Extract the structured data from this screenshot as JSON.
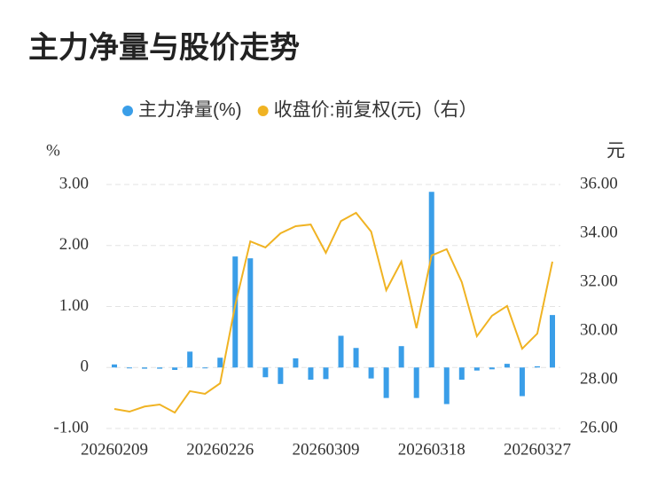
{
  "chart_data": {
    "type": "bar_line",
    "title": "主力净量与股价走势",
    "y_label": "%",
    "y2_label": "元",
    "categories": [
      "20260209",
      null,
      null,
      null,
      null,
      null,
      null,
      "20260226",
      null,
      null,
      null,
      null,
      null,
      null,
      "20260309",
      null,
      null,
      null,
      null,
      null,
      null,
      "20260318",
      null,
      null,
      null,
      null,
      null,
      null,
      "20260327",
      null
    ],
    "series": [
      {
        "name": "主力净量(%)",
        "type": "bar",
        "color": "#3a9ee8",
        "values": [
          0.05,
          -0.01,
          -0.02,
          -0.02,
          -0.04,
          0.26,
          -0.01,
          0.16,
          1.82,
          1.79,
          -0.16,
          -0.27,
          0.15,
          -0.2,
          -0.19,
          0.52,
          0.32,
          -0.18,
          -0.5,
          0.35,
          -0.5,
          2.88,
          -0.6,
          -0.2,
          -0.05,
          -0.03,
          0.06,
          -0.47,
          0.02,
          0.86
        ]
      },
      {
        "name": "收盘价:前复权(元)（右）",
        "type": "line",
        "axis": "y2",
        "color": "#f0b323",
        "values": [
          26.8,
          26.69,
          26.9,
          26.98,
          26.65,
          27.53,
          27.42,
          27.85,
          31.05,
          33.67,
          33.42,
          34.0,
          34.29,
          34.36,
          33.2,
          34.5,
          34.84,
          34.07,
          31.67,
          32.84,
          30.11,
          33.09,
          33.35,
          32.0,
          29.78,
          30.62,
          31.02,
          29.27,
          29.89,
          32.84
        ]
      }
    ],
    "ylim": [
      -1,
      3
    ],
    "yticks": [
      {
        "value": -1,
        "label": "-1.00"
      },
      0,
      {
        "value": 1,
        "label": "1.00"
      },
      {
        "value": 2,
        "label": "2.00"
      },
      {
        "value": 3,
        "label": "3.00"
      }
    ],
    "y2lim": [
      26,
      36
    ],
    "y2ticks": [
      {
        "value": 26,
        "label": "26.00"
      },
      {
        "value": 28,
        "label": "28.00"
      },
      {
        "value": 30,
        "label": "30.00"
      },
      {
        "value": 32,
        "label": "32.00"
      },
      {
        "value": 34,
        "label": "34.00"
      },
      {
        "value": 36,
        "label": "36.00"
      }
    ],
    "grid": true
  }
}
